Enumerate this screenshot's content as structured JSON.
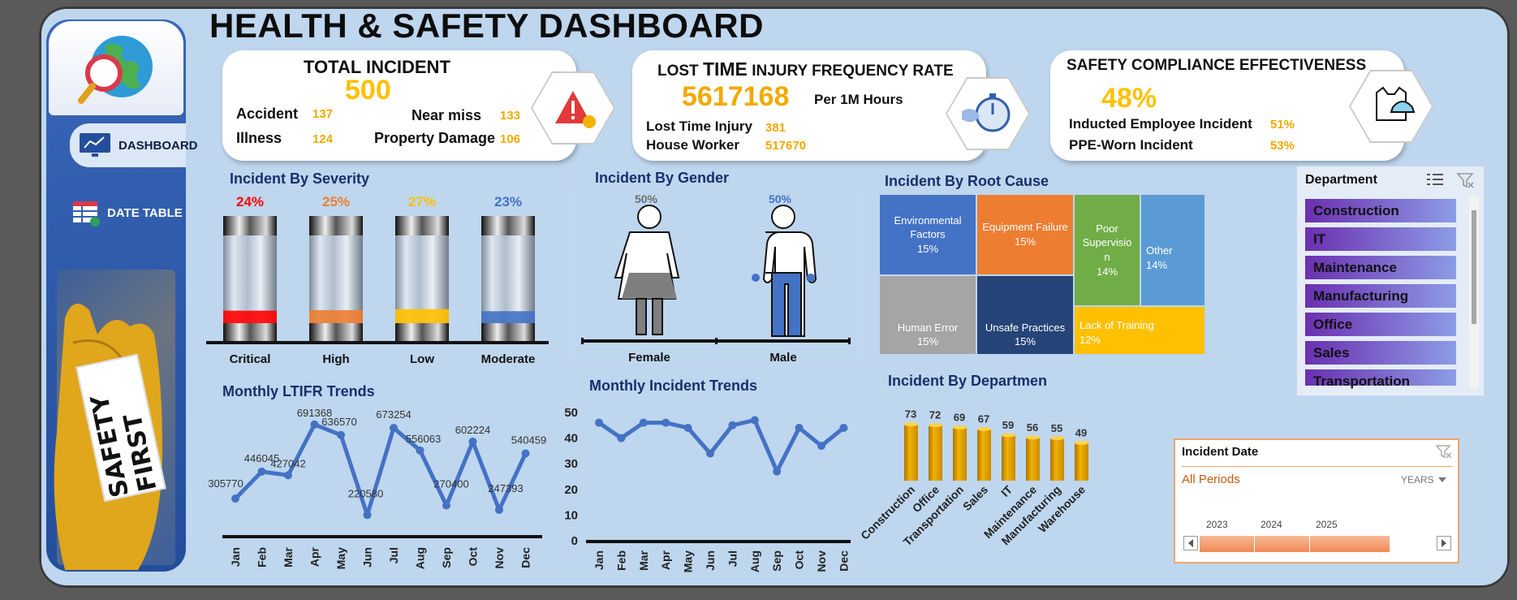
{
  "title": "HEALTH & SAFETY DASHBOARD",
  "nav": {
    "dashboard": "DASHBOARD",
    "date_table": "DATE TABLE",
    "poster_text": "SAFETY FIRST"
  },
  "total_incident": {
    "label": "TOTAL INCIDENT",
    "value": "500",
    "items": [
      {
        "label": "Accident",
        "value": "137"
      },
      {
        "label": "Near miss",
        "value": "133"
      },
      {
        "label": "Illness",
        "value": "124"
      },
      {
        "label": "Property Damage",
        "value": "106"
      }
    ]
  },
  "ltifr": {
    "label_pre": "LOST",
    "label_em": "TIME",
    "label_post": "INJURY FREQUENCY RATE",
    "value": "5617168",
    "unit": "Per 1M Hours",
    "items": [
      {
        "label": "Lost Time Injury",
        "value": "381"
      },
      {
        "label": "House Worker",
        "value": "517670"
      }
    ]
  },
  "compliance": {
    "label": "SAFETY COMPLIANCE EFFECTIVENESS",
    "value": "48%",
    "items": [
      {
        "label": "Inducted Employee Incident",
        "value": "51%"
      },
      {
        "label": "PPE-Worn Incident",
        "value": "53%"
      }
    ]
  },
  "colors": {
    "critical": "#ff0000",
    "high": "#ed7d31",
    "low": "#ffc000",
    "moderate": "#4472c4",
    "line": "#4472c4",
    "gold": "#f2a900",
    "female": "#7f7f7f",
    "male": "#4472c4"
  },
  "severity": {
    "title": "Incident By Severity",
    "items": [
      {
        "label": "Critical",
        "pct": "24%",
        "value": 24,
        "color": "#ff0000"
      },
      {
        "label": "High",
        "pct": "25%",
        "value": 25,
        "color": "#ed7d31"
      },
      {
        "label": "Low",
        "pct": "27%",
        "value": 27,
        "color": "#ffc000"
      },
      {
        "label": "Moderate",
        "pct": "23%",
        "value": 23,
        "color": "#4472c4"
      }
    ]
  },
  "gender": {
    "title": "Incident By Gender",
    "items": [
      {
        "label": "Female",
        "pct": "50%",
        "value": 50
      },
      {
        "label": "Male",
        "pct": "50%",
        "value": 50
      }
    ]
  },
  "root_cause": {
    "title": "Incident By Root Cause",
    "cells": [
      {
        "label": "Environmental Factors",
        "pct": "15%",
        "color": "#4472c4"
      },
      {
        "label": "Equipment Failure",
        "pct": "15%",
        "color": "#ed7d31"
      },
      {
        "label": "Poor Supervisio n",
        "pct": "14%",
        "color": "#70ad47"
      },
      {
        "label": "Other",
        "pct": "14%",
        "color": "#5b9bd5"
      },
      {
        "label": "Human Error",
        "pct": "15%",
        "color": "#a5a5a5"
      },
      {
        "label": "Unsafe Practices",
        "pct": "15%",
        "color": "#264478"
      },
      {
        "label": "Lack of Training",
        "pct": "12%",
        "color": "#ffc000"
      }
    ]
  },
  "department": {
    "header": "Department",
    "items": [
      "Construction",
      "IT",
      "Maintenance",
      "Manufacturing",
      "Office",
      "Sales",
      "Transportation"
    ]
  },
  "incident_date": {
    "header": "Incident Date",
    "selection": "All Periods",
    "level": "YEARS",
    "years": [
      "2023",
      "2024",
      "2025"
    ]
  },
  "chart_data": [
    {
      "type": "line",
      "title": "Monthly LTIFR Trends",
      "x": [
        "Jan",
        "Feb",
        "Mar",
        "Apr",
        "May",
        "Jun",
        "Jul",
        "Aug",
        "Sep",
        "Oct",
        "Nov",
        "Dec"
      ],
      "values": [
        305770,
        446045,
        427042,
        691368,
        636570,
        220580,
        673254,
        556063,
        270400,
        602224,
        247393,
        540459
      ],
      "labels": [
        "305770",
        "446045",
        "427042",
        "691368",
        "636570",
        "220580",
        "673254",
        "556063",
        "270400",
        "602224",
        "247393",
        "540459"
      ]
    },
    {
      "type": "line",
      "title": "Monthly Incident Trends",
      "x": [
        "Jan",
        "Feb",
        "Mar",
        "Apr",
        "May",
        "Jun",
        "Jul",
        "Aug",
        "Sep",
        "Oct",
        "Nov",
        "Dec"
      ],
      "values": [
        46,
        40,
        46,
        46,
        44,
        34,
        45,
        47,
        27,
        44,
        37,
        44
      ],
      "ylim": [
        0,
        50
      ],
      "yticks": [
        "0",
        "10",
        "20",
        "30",
        "40",
        "50"
      ]
    },
    {
      "type": "bar",
      "title": "Incident By Departmen",
      "categories": [
        "Construction",
        "Office",
        "Transportation",
        "Sales",
        "IT",
        "Maintenance",
        "Manufacturing",
        "Warehouse"
      ],
      "values": [
        73,
        72,
        69,
        67,
        59,
        56,
        55,
        49
      ],
      "labels": [
        "73",
        "72",
        "69",
        "67",
        "59",
        "56",
        "55",
        "49"
      ]
    }
  ]
}
